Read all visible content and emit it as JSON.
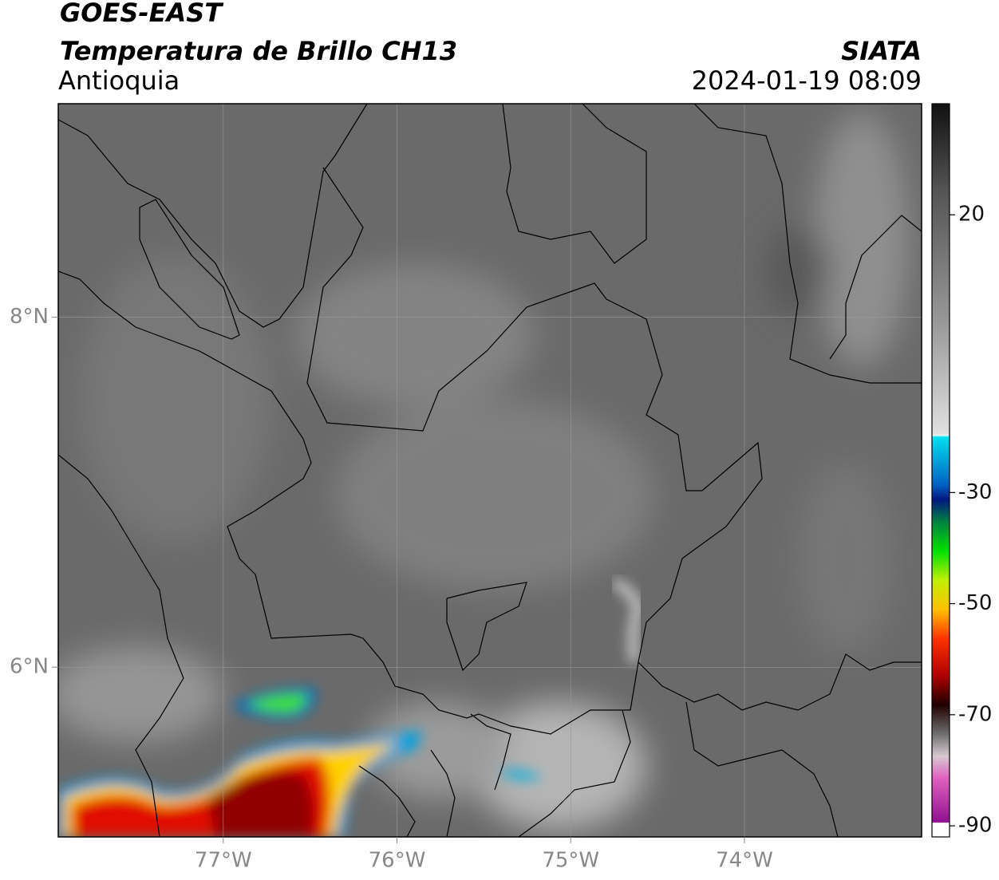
{
  "header": {
    "title": "GOES-EAST",
    "subtitle": "Temperatura de Brillo CH13",
    "region": "Antioquia",
    "source": "SIATA",
    "timestamp": "2024-01-19 08:09"
  },
  "map": {
    "xlim": [
      -77.95,
      -72.98
    ],
    "ylim": [
      5.03,
      9.22
    ],
    "xticks": [
      {
        "value": -77,
        "label": "77°W"
      },
      {
        "value": -76,
        "label": "76°W"
      },
      {
        "value": -75,
        "label": "75°W"
      },
      {
        "value": -74,
        "label": "74°W"
      }
    ],
    "yticks": [
      {
        "value": 6,
        "label": "6°N"
      },
      {
        "value": 8,
        "label": "8°N"
      }
    ],
    "grid": true
  },
  "colorbar": {
    "ylim": [
      -92,
      40
    ],
    "yticks": [
      -90,
      -70,
      -50,
      -30,
      20
    ]
  }
}
